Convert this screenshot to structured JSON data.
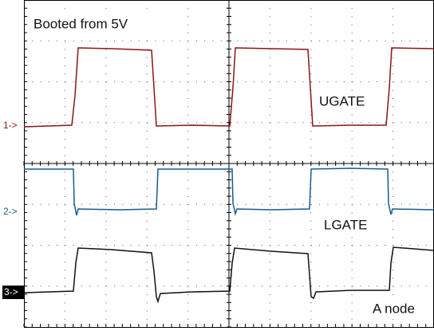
{
  "title": "Booted from 5V",
  "channels": [
    {
      "marker": "1->",
      "label": "UGATE"
    },
    {
      "marker": "2->",
      "label": "LGATE"
    },
    {
      "marker": "3->",
      "label": "A node"
    }
  ]
}
